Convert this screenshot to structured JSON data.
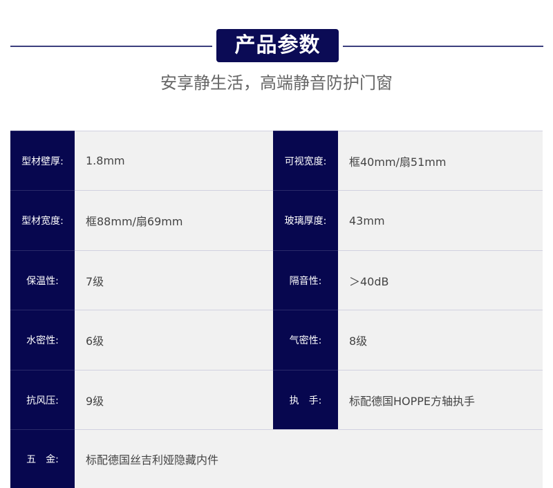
{
  "header": {
    "title": "产品参数",
    "subtitle": "安享静生活，高端静音防护门窗"
  },
  "colors": {
    "navy": "#07074f",
    "cell_bg": "#f1f1f1"
  },
  "rows": [
    [
      {
        "label": "型材壁厚:",
        "value": "1.8mm"
      },
      {
        "label": "可视宽度:",
        "value": "框40mm/扇51mm"
      }
    ],
    [
      {
        "label": "型材宽度:",
        "value": "框88mm/扇69mm"
      },
      {
        "label": "玻璃厚度:",
        "value": "43mm"
      }
    ],
    [
      {
        "label": "保温性:",
        "value": "7级"
      },
      {
        "label": "隔音性:",
        "value": "＞40dB"
      }
    ],
    [
      {
        "label": "水密性:",
        "value": "6级"
      },
      {
        "label": "气密性:",
        "value": "8级"
      }
    ],
    [
      {
        "label": "抗风压:",
        "value": "9级"
      },
      {
        "label": "执　手:",
        "value": "标配德国HOPPE方轴执手"
      }
    ],
    [
      {
        "label": "五　金:",
        "value": "标配德国丝吉利娅隐藏内件"
      }
    ]
  ]
}
